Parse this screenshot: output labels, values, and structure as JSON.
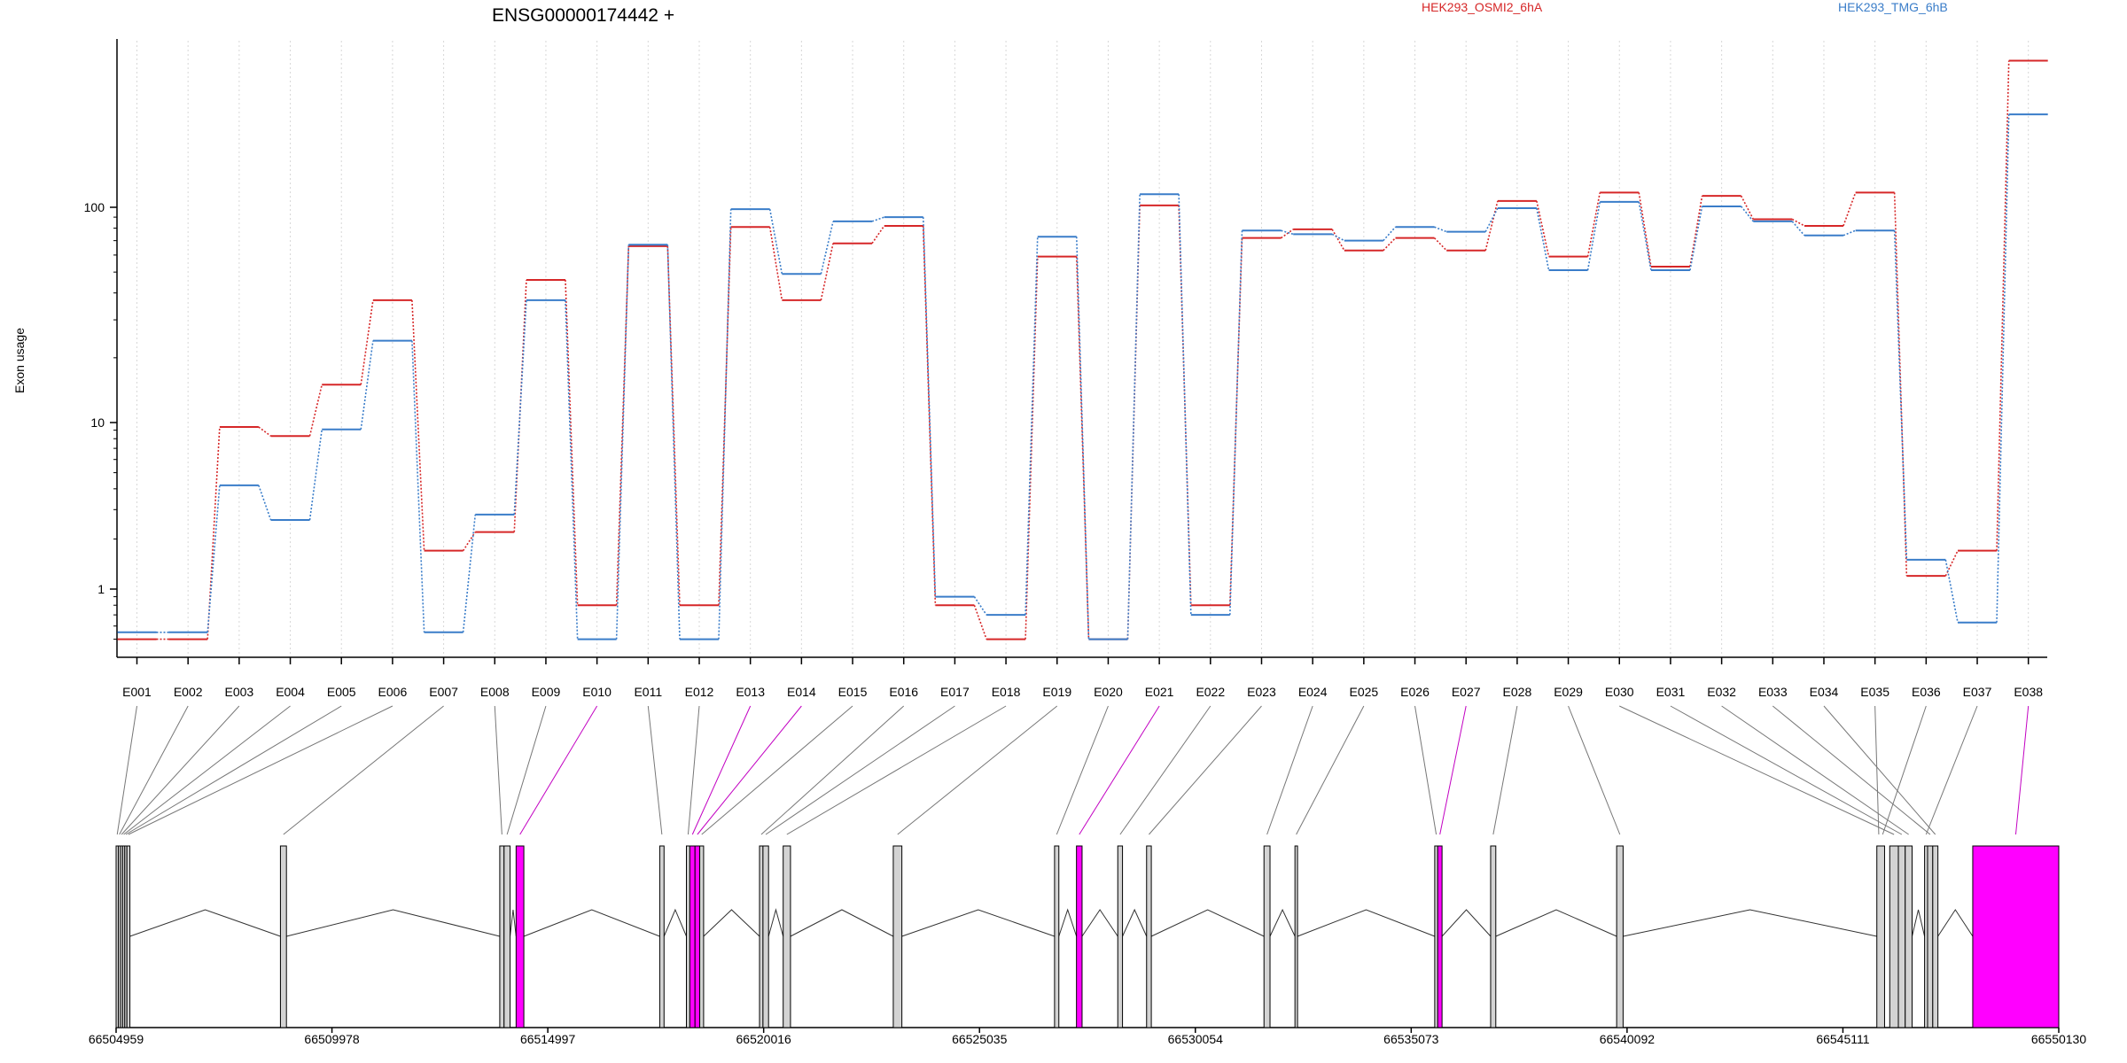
{
  "chart_data": {
    "type": "line",
    "title": "ENSG00000174442 +",
    "ylabel": "Exon usage",
    "xlabel": "",
    "yscale": "log",
    "yticks": [
      1,
      10,
      100
    ],
    "ytick_labels": [
      "1",
      "10",
      "100"
    ],
    "ylim": [
      0.5,
      500
    ],
    "grid": "vertical dotted lines at each exon",
    "legend_placement": "top",
    "categories": [
      "E001",
      "E002",
      "E003",
      "E004",
      "E005",
      "E006",
      "E007",
      "E008",
      "E009",
      "E010",
      "E011",
      "E012",
      "E013",
      "E014",
      "E015",
      "E016",
      "E017",
      "E018",
      "E019",
      "E020",
      "E021",
      "E022",
      "E023",
      "E024",
      "E025",
      "E026",
      "E027",
      "E028",
      "E029",
      "E030",
      "E031",
      "E032",
      "E033",
      "E034",
      "E035",
      "E036",
      "E037",
      "E038"
    ],
    "series": [
      {
        "name": "HEK293_OSMI2_6hA",
        "color": "#d62728",
        "values": [
          0.5,
          0.5,
          9.4,
          8.3,
          15,
          37,
          1.7,
          2.2,
          46,
          0.8,
          66,
          0.8,
          81,
          37,
          68,
          82,
          0.8,
          0.5,
          59,
          0.5,
          102,
          0.8,
          72,
          79,
          63,
          72,
          63,
          107,
          59,
          117,
          53,
          113,
          88,
          82,
          117,
          1.2,
          1.7,
          480
        ]
      },
      {
        "name": "HEK293_TMG_6hB",
        "color": "#3a7dc9",
        "values": [
          0.55,
          0.55,
          4.2,
          2.6,
          9.1,
          24,
          0.55,
          2.8,
          37,
          0.5,
          67,
          0.5,
          98,
          49,
          86,
          90,
          0.9,
          0.7,
          73,
          0.5,
          115,
          0.7,
          78,
          75,
          70,
          81,
          77,
          99,
          51,
          106,
          51,
          101,
          86,
          74,
          78,
          1.5,
          0.63,
          270
        ]
      }
    ],
    "gene_model": {
      "genomic_ticks": [
        "66504959",
        "66509978",
        "66514997",
        "66520016",
        "66525035",
        "66530054",
        "66535073",
        "66540092",
        "66545111",
        "66550130"
      ],
      "genomic_tick_values": [
        66504959,
        66509978,
        66514997,
        66520016,
        66525035,
        66530054,
        66535073,
        66540092,
        66545111,
        66550130
      ],
      "highlighted_exons": [
        "E010",
        "E013",
        "E014",
        "E021",
        "E027",
        "E038"
      ],
      "highlight_color": "#ff00ff",
      "exon_spans": [
        [
          66504959,
          66505010
        ],
        [
          66505010,
          66505060
        ],
        [
          66505060,
          66505110
        ],
        [
          66505110,
          66505160
        ],
        [
          66505160,
          66505210
        ],
        [
          66505210,
          66505280
        ],
        [
          66508780,
          66508920
        ],
        [
          66513880,
          66513980
        ],
        [
          66513980,
          66514120
        ],
        [
          66514260,
          66514440
        ],
        [
          66517600,
          66517700
        ],
        [
          66518220,
          66518300
        ],
        [
          66518300,
          66518420
        ],
        [
          66518420,
          66518530
        ],
        [
          66518530,
          66518620
        ],
        [
          66519920,
          66520000
        ],
        [
          66520000,
          66520130
        ],
        [
          66520470,
          66520640
        ],
        [
          66523030,
          66523230
        ],
        [
          66526780,
          66526880
        ],
        [
          66527290,
          66527420
        ],
        [
          66528250,
          66528360
        ],
        [
          66528920,
          66529030
        ],
        [
          66531650,
          66531790
        ],
        [
          66532370,
          66532430
        ],
        [
          66535620,
          66535690
        ],
        [
          66535690,
          66535790
        ],
        [
          66536920,
          66537040
        ],
        [
          66539850,
          66540000
        ],
        [
          66546200,
          66546400
        ],
        [
          66546400,
          66546560
        ],
        [
          66546560,
          66546720
        ],
        [
          66547080,
          66547200
        ],
        [
          66547200,
          66547320
        ],
        [
          66548130,
          66550130
        ]
      ],
      "exon_span_labels": [
        "E001",
        "E002",
        "E003",
        "E004",
        "E005",
        "E006",
        "E007",
        "E008",
        "E009",
        "E010",
        "E011",
        "E012",
        "E013",
        "E014",
        "E015",
        "E016",
        "E017",
        "E018",
        "E019",
        "E020",
        "E021",
        "E022",
        "E023",
        "E024",
        "E025",
        "E026",
        "E027",
        "E028",
        "E029",
        "E030",
        "E031",
        "E032",
        "E033",
        "E034",
        "E038"
      ],
      "extra_spans": [
        {
          "exons": [
            "E035",
            "E036"
          ],
          "range": [
            66545900,
            66546080
          ]
        },
        {
          "exons": [
            "E037"
          ],
          "range": [
            66547010,
            66547080
          ]
        }
      ]
    }
  }
}
